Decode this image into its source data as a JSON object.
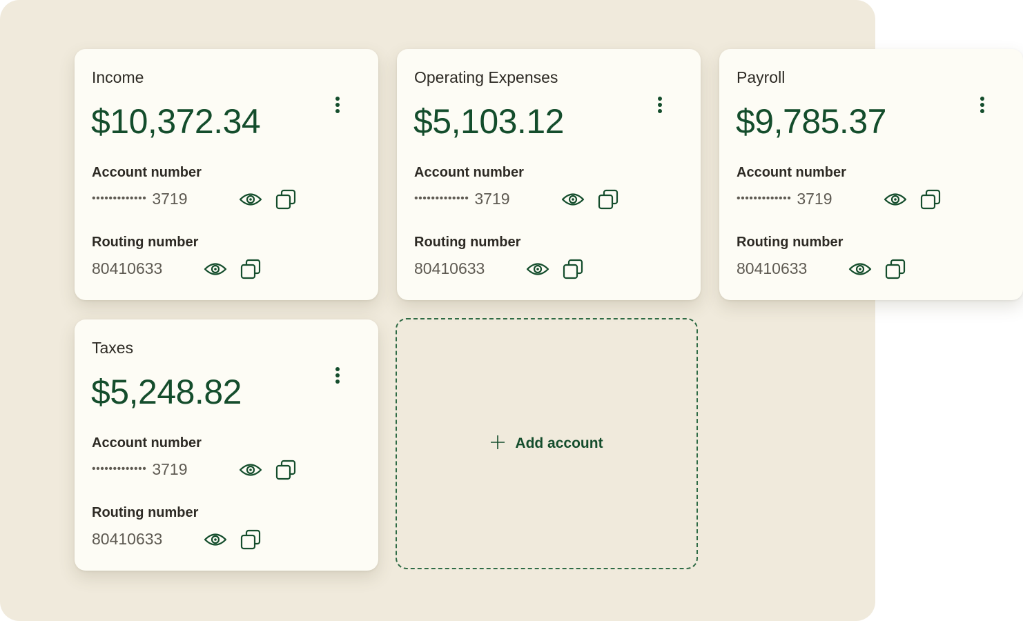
{
  "colors": {
    "background": "#f0eadc",
    "card": "#fdfcf5",
    "accent_green": "#144d2c",
    "text": "#2d2a24",
    "muted_text": "#5e5a52"
  },
  "labels": {
    "account_number": "Account number",
    "routing_number": "Routing number",
    "masked_dots": "•••••••••••••"
  },
  "accounts": [
    {
      "title": "Income",
      "balance": "$10,372.34",
      "account_last4": "3719",
      "routing_number": "80410633"
    },
    {
      "title": "Operating Expenses",
      "balance": "$5,103.12",
      "account_last4": "3719",
      "routing_number": "80410633"
    },
    {
      "title": "Payroll",
      "balance": "$9,785.37",
      "account_last4": "3719",
      "routing_number": "80410633"
    },
    {
      "title": "Taxes",
      "balance": "$5,248.82",
      "account_last4": "3719",
      "routing_number": "80410633"
    }
  ],
  "add_account": {
    "label": "Add account",
    "icon": "plus-icon"
  },
  "icons": {
    "reveal": "eye-icon",
    "copy": "copy-icon",
    "menu": "more-vertical-icon"
  }
}
